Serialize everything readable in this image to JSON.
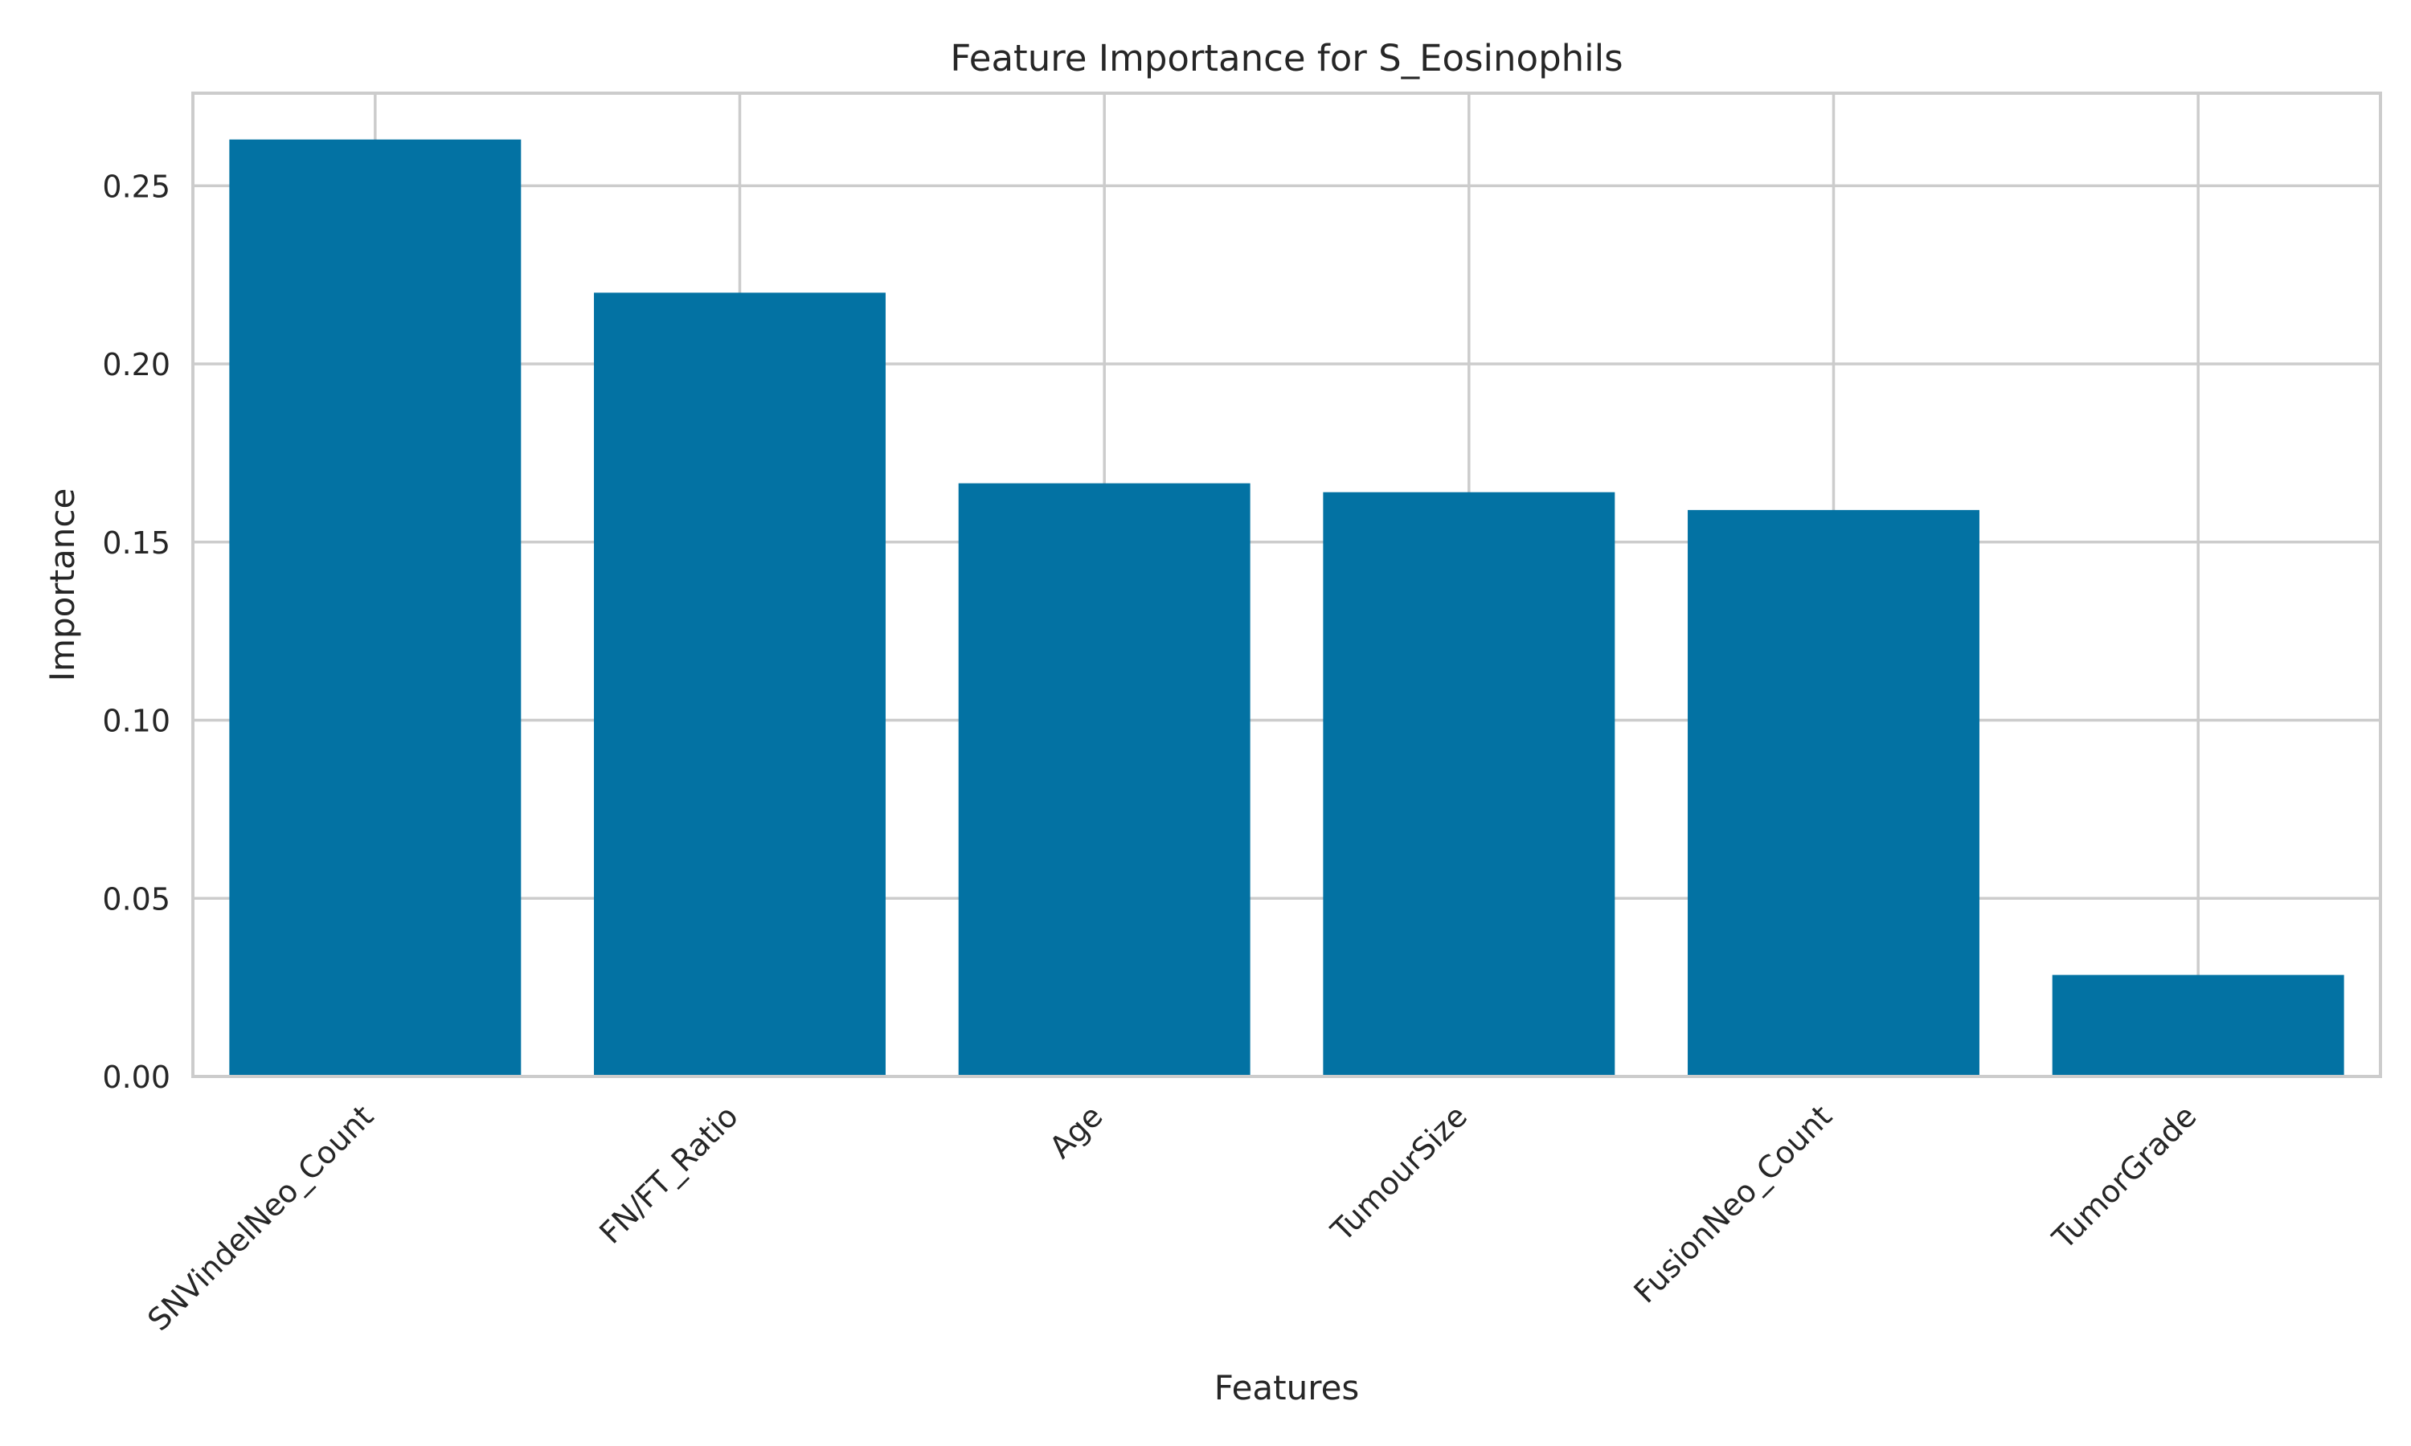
{
  "chart_data": {
    "type": "bar",
    "title": "Feature Importance for S_Eosinophils",
    "xlabel": "Features",
    "ylabel": "Importance",
    "categories": [
      "SNVindelNeo_Count",
      "FN/FT_Ratio",
      "Age",
      "TumourSize",
      "FusionNeo_Count",
      "TumorGrade"
    ],
    "values": [
      0.263,
      0.22,
      0.1665,
      0.164,
      0.159,
      0.0285
    ],
    "ylim": [
      0,
      0.276
    ],
    "yticks": [
      0.0,
      0.05,
      0.1,
      0.15,
      0.2,
      0.25
    ],
    "ytick_labels": [
      "0.00",
      "0.05",
      "0.10",
      "0.15",
      "0.20",
      "0.25"
    ],
    "grid": true,
    "bar_color": "#0372a3",
    "grid_color": "#cccccc",
    "spine_color": "#cccccc"
  }
}
